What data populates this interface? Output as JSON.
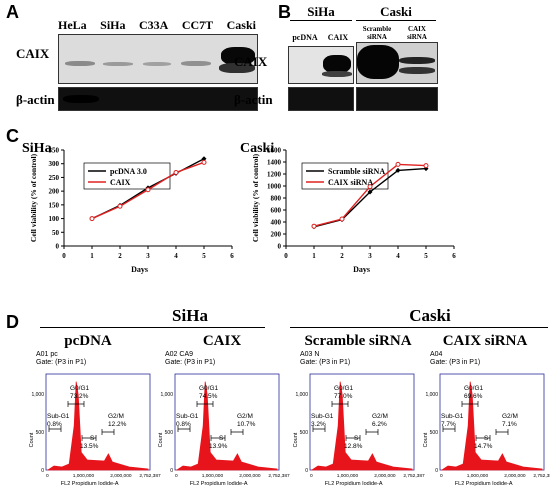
{
  "panelA": {
    "letter": "A",
    "lanes": [
      "HeLa",
      "SiHa",
      "C33A",
      "CC7T",
      "Caski"
    ],
    "rows": [
      "CAIX",
      "β-actin"
    ]
  },
  "panelB": {
    "letter": "B",
    "siha": {
      "title": "SiHa",
      "lanes": [
        "pcDNA",
        "CAIX"
      ]
    },
    "caski": {
      "title": "Caski",
      "lanes": [
        "Scramble siRNA",
        "CAIX siRNA"
      ]
    },
    "rows": [
      "CAIX",
      "β-actin"
    ]
  },
  "panelC": {
    "letter": "C"
  },
  "chart_data": [
    {
      "type": "line",
      "title": "SiHa",
      "xlabel": "Days",
      "ylabel": "Cell viability (% of control)",
      "x": [
        1,
        2,
        3,
        4,
        5
      ],
      "xlim": [
        0,
        6
      ],
      "ylim": [
        0,
        350
      ],
      "xticks": [
        0,
        1,
        2,
        3,
        4,
        5,
        6
      ],
      "yticks": [
        0,
        50,
        100,
        150,
        200,
        250,
        300,
        350
      ],
      "series": [
        {
          "name": "pcDNA 3.0",
          "color": "#000000",
          "values": [
            100,
            148,
            212,
            265,
            318
          ]
        },
        {
          "name": "CAIX",
          "color": "#e02020",
          "values": [
            100,
            145,
            205,
            268,
            305
          ]
        }
      ],
      "legend": "top-left"
    },
    {
      "type": "line",
      "title": "Caski",
      "xlabel": "Days",
      "ylabel": "Cell viability (% of control)",
      "x": [
        1,
        2,
        3,
        4,
        5
      ],
      "xlim": [
        0,
        6
      ],
      "ylim": [
        0,
        1600
      ],
      "xticks": [
        0,
        1,
        2,
        3,
        4,
        5,
        6
      ],
      "yticks": [
        0,
        200,
        400,
        600,
        800,
        1000,
        1200,
        1400,
        1600
      ],
      "series": [
        {
          "name": "Scramble siRNA",
          "color": "#000000",
          "values": [
            320,
            440,
            900,
            1260,
            1290
          ]
        },
        {
          "name": "CAIX siRNA",
          "color": "#e02020",
          "values": [
            330,
            450,
            990,
            1360,
            1340
          ]
        }
      ],
      "legend": "top-left"
    }
  ],
  "panelD": {
    "letter": "D",
    "group_siha": "SiHa",
    "group_caski": "Caski",
    "condition_labels": [
      "pcDNA",
      "CAIX",
      "Scramble siRNA",
      "CAIX siRNA"
    ],
    "xaxis_label": "FL2 Propidium Iodide-A",
    "yaxis_label": "Count",
    "xticks": [
      "0",
      "1,000,000",
      "2,000,000",
      "2,752,387"
    ],
    "yticks": [
      "0",
      "500",
      "1,000"
    ],
    "label_g0g1": "G0/G1",
    "label_subg1": "Sub-G1",
    "label_g2m": "G2/M",
    "label_s": "S",
    "hist_color": "#e8141c",
    "plots": [
      {
        "name": "A01 pc",
        "gate": "Gate: (P3 in P1)",
        "g0g1": "73.2%",
        "subg1": "0.8%",
        "g2m": "12.2%",
        "s": "13.5%"
      },
      {
        "name": "A02 CA9",
        "gate": "Gate: (P3 in P1)",
        "g0g1": "74.5%",
        "subg1": "0.8%",
        "g2m": "10.7%",
        "s": "13.9%"
      },
      {
        "name": "A03 N",
        "gate": "Gate: (P3 in P1)",
        "g0g1": "77.0%",
        "subg1": "3.2%",
        "g2m": "6.2%",
        "s": "12.8%"
      },
      {
        "name": "A04",
        "gate": "Gate: (P3 in P1)",
        "g0g1": "69.6%",
        "subg1": "7.7%",
        "g2m": "7.1%",
        "s": "14.7%"
      }
    ]
  }
}
